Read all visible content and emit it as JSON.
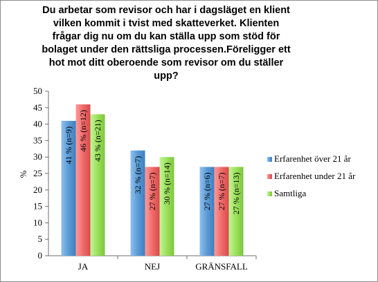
{
  "chart_data": {
    "type": "bar",
    "title": "Du arbetar som revisor och har i dagsläget en klient vilken kommit i tvist med skatteverket. Klienten frågar dig nu om du kan ställa upp som stöd för bolaget under den rättsliga processen.Föreligger ett hot mot ditt oberoende som revisor om du ställer upp?",
    "xlabel": "",
    "ylabel": "%",
    "ylim": [
      0,
      50
    ],
    "yticks": [
      0,
      5,
      10,
      15,
      20,
      25,
      30,
      35,
      40,
      45,
      50
    ],
    "grid": false,
    "legend_position": "right",
    "categories": [
      "JA",
      "NEJ",
      "GRÄNSFALL"
    ],
    "series": [
      {
        "name": "Erfarenhet över 21 år",
        "color": "#5b9bd5",
        "values": [
          41,
          32,
          27
        ],
        "labels": [
          "41 % (n=9)",
          "32 % (n=7)",
          "27 % (n=6)"
        ]
      },
      {
        "name": "Erfarenhet under 21 år",
        "color": "#f06b6b",
        "values": [
          46,
          27,
          27
        ],
        "labels": [
          "46 % (n=12)",
          "27 % (n=7)",
          "27 % (n=7)"
        ]
      },
      {
        "name": "Samtliga",
        "color": "#9be05a",
        "values": [
          43,
          30,
          27
        ],
        "labels": [
          "43 % (n=21)",
          "30 % (n=14)",
          "27 % (n=13)"
        ]
      }
    ]
  }
}
